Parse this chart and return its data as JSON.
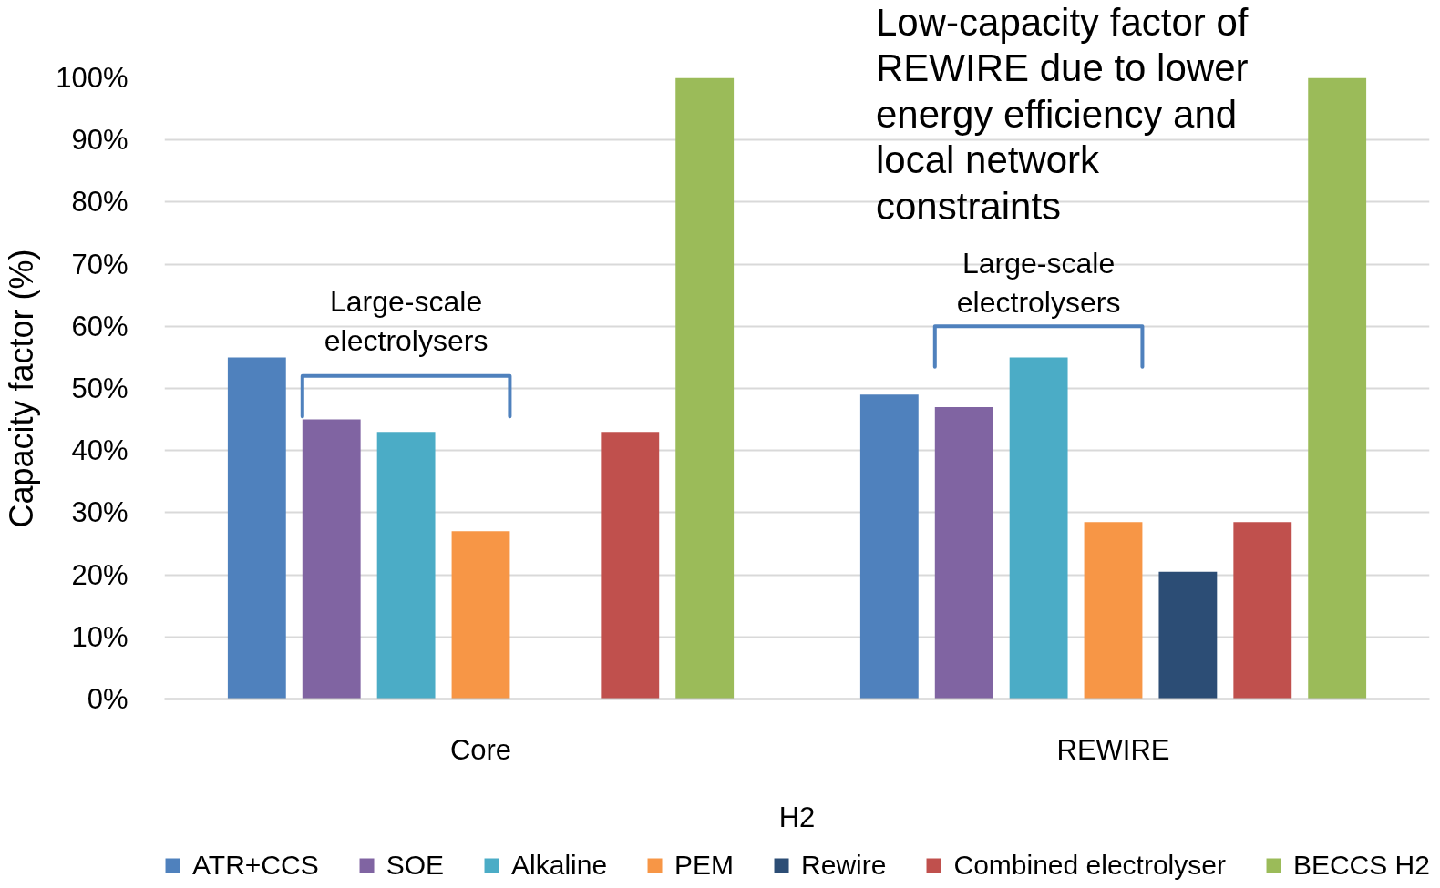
{
  "chart_data": {
    "type": "bar",
    "categories": [
      "Core",
      "REWIRE"
    ],
    "xlabel": "H2",
    "ylabel": "Capacity factor (%)",
    "ylim": [
      0,
      100
    ],
    "yticks": [
      {
        "value": 0,
        "label": "0%"
      },
      {
        "value": 10,
        "label": "10%"
      },
      {
        "value": 20,
        "label": "20%"
      },
      {
        "value": 30,
        "label": "30%"
      },
      {
        "value": 40,
        "label": "40%"
      },
      {
        "value": 50,
        "label": "50%"
      },
      {
        "value": 60,
        "label": "60%"
      },
      {
        "value": 70,
        "label": "70%"
      },
      {
        "value": 80,
        "label": "80%"
      },
      {
        "value": 90,
        "label": "90%"
      },
      {
        "value": 100,
        "label": "100%"
      }
    ],
    "series": [
      {
        "name": "ATR+CCS",
        "color": "#4f81bd",
        "values": [
          55,
          49
        ]
      },
      {
        "name": "SOE",
        "color": "#8064a2",
        "values": [
          45,
          47
        ]
      },
      {
        "name": "Alkaline",
        "color": "#4bacc6",
        "values": [
          43,
          55
        ]
      },
      {
        "name": "PEM",
        "color": "#f79646",
        "values": [
          27,
          28.5
        ]
      },
      {
        "name": "Rewire",
        "color": "#2c4d75",
        "values": [
          null,
          20.5
        ]
      },
      {
        "name": "Combined electrolyser",
        "color": "#c0504d",
        "values": [
          43,
          28.5
        ]
      },
      {
        "name": "BECCS H2",
        "color": "#9bbb59",
        "values": [
          100,
          100
        ]
      }
    ],
    "annotations": [
      "Low-capacity factor of REWIRE due to lower energy efficiency and local network constraints",
      "Large-scale electrolysers",
      "Large-scale electrolysers"
    ],
    "grid": "y",
    "legend": "bottom"
  }
}
